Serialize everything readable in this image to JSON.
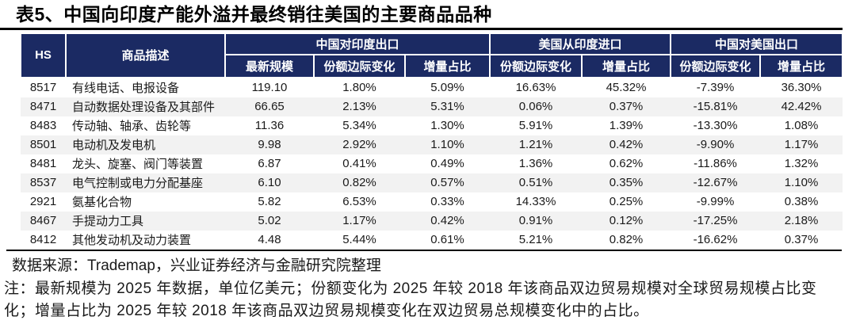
{
  "title": "表5、中国向印度产能外溢并最终销往美国的主要商品品种",
  "table": {
    "hs_label": "HS",
    "desc_label": "商品描述",
    "groups": [
      {
        "label": "中国对印度出口",
        "sub": [
          "最新规模",
          "份额边际变化",
          "增量占比"
        ]
      },
      {
        "label": "美国从印度进口",
        "sub": [
          "份额边际变化",
          "增量占比"
        ]
      },
      {
        "label": "中国对美国出口",
        "sub": [
          "份额边际变化",
          "增量占比"
        ]
      }
    ],
    "rows": [
      {
        "hs": "8517",
        "desc": "有线电话、电报设备",
        "values": [
          "119.10",
          "1.80%",
          "5.09%",
          "16.63%",
          "45.32%",
          "-7.39%",
          "36.30%"
        ]
      },
      {
        "hs": "8471",
        "desc": "自动数据处理设备及其部件",
        "values": [
          "66.65",
          "2.13%",
          "5.31%",
          "0.06%",
          "0.37%",
          "-15.81%",
          "42.42%"
        ]
      },
      {
        "hs": "8483",
        "desc": "传动轴、轴承、齿轮等",
        "values": [
          "11.36",
          "5.34%",
          "1.30%",
          "5.91%",
          "1.39%",
          "-13.30%",
          "1.08%"
        ]
      },
      {
        "hs": "8501",
        "desc": "电动机及发电机",
        "values": [
          "9.98",
          "2.92%",
          "1.10%",
          "1.21%",
          "0.42%",
          "-9.90%",
          "1.17%"
        ]
      },
      {
        "hs": "8481",
        "desc": "龙头、旋塞、阀门等装置",
        "values": [
          "6.87",
          "0.41%",
          "0.49%",
          "1.36%",
          "0.62%",
          "-11.86%",
          "1.32%"
        ]
      },
      {
        "hs": "8537",
        "desc": "电气控制或电力分配基座",
        "values": [
          "6.10",
          "0.82%",
          "0.57%",
          "0.51%",
          "0.35%",
          "-12.67%",
          "1.10%"
        ]
      },
      {
        "hs": "2921",
        "desc": "氨基化合物",
        "values": [
          "5.82",
          "6.53%",
          "0.33%",
          "14.33%",
          "0.25%",
          "-9.99%",
          "0.38%"
        ]
      },
      {
        "hs": "8467",
        "desc": "手提动力工具",
        "values": [
          "5.02",
          "1.17%",
          "0.42%",
          "0.91%",
          "0.12%",
          "-17.25%",
          "2.18%"
        ]
      },
      {
        "hs": "8412",
        "desc": "其他发动机及动力装置",
        "values": [
          "4.48",
          "5.44%",
          "0.61%",
          "5.21%",
          "0.82%",
          "-16.62%",
          "0.37%"
        ]
      }
    ]
  },
  "source": "数据来源：Trademap，兴业证券经济与金融研究院整理",
  "note_lines": [
    "注：最新规模为 2025 年数据，单位亿美元；份额变化为 2025 年较 2018 年该商品双边贸易规模对全球贸易规模占比变",
    "化；增量占比为 2025 年较 2018 年该商品双边贸易规模变化在双边贸易总规模变化中的占比。"
  ],
  "colors": {
    "header_bg": "#1B2A63",
    "header_text": "#FFFFFF",
    "row_alt_bg": "#F2F2F2",
    "rule": "#000000"
  }
}
